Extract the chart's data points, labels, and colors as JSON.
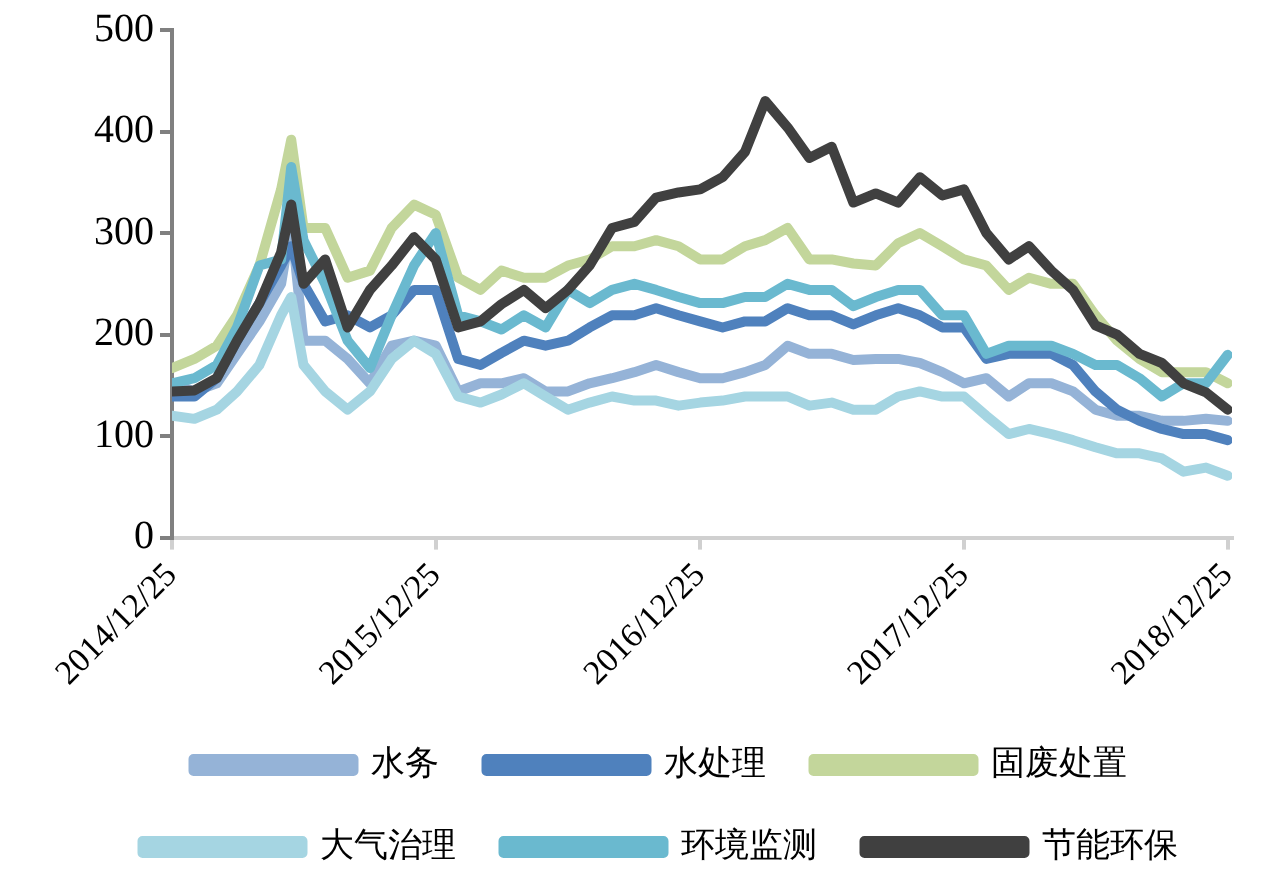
{
  "chart_data": {
    "type": "line",
    "x": [
      "2014-12-25",
      "2015-01-25",
      "2015-02-25",
      "2015-03-25",
      "2015-04-25",
      "2015-05-25",
      "2015-06-08",
      "2015-06-25",
      "2015-07-25",
      "2015-08-25",
      "2015-09-25",
      "2015-10-25",
      "2015-11-25",
      "2015-12-25",
      "2016-01-25",
      "2016-02-25",
      "2016-03-25",
      "2016-04-25",
      "2016-05-25",
      "2016-06-25",
      "2016-07-25",
      "2016-08-25",
      "2016-09-25",
      "2016-10-25",
      "2016-11-25",
      "2016-12-25",
      "2017-01-25",
      "2017-02-25",
      "2017-03-25",
      "2017-04-25",
      "2017-05-25",
      "2017-06-25",
      "2017-07-25",
      "2017-08-25",
      "2017-09-25",
      "2017-10-25",
      "2017-11-25",
      "2017-12-25",
      "2018-01-25",
      "2018-02-25",
      "2018-03-25",
      "2018-04-25",
      "2018-05-25",
      "2018-06-25",
      "2018-07-25",
      "2018-08-25",
      "2018-09-25",
      "2018-10-25",
      "2018-11-25",
      "2018-12-25"
    ],
    "series": [
      {
        "name": "水务",
        "color": "#95b3d7",
        "values": [
          152,
          144,
          152,
          181,
          213,
          250,
          310,
          194,
          194,
          176,
          152,
          189,
          194,
          189,
          144,
          152,
          152,
          157,
          144,
          144,
          152,
          157,
          163,
          170,
          163,
          157,
          157,
          163,
          170,
          189,
          181,
          181,
          175,
          176,
          176,
          172,
          163,
          152,
          157,
          139,
          152,
          152,
          144,
          126,
          120,
          120,
          115,
          115,
          117,
          115
        ]
      },
      {
        "name": "水处理",
        "color": "#4f81bd",
        "values": [
          139,
          139,
          157,
          194,
          231,
          268,
          287,
          250,
          213,
          219,
          207,
          219,
          244,
          244,
          176,
          170,
          182,
          194,
          189,
          194,
          207,
          219,
          219,
          226,
          219,
          213,
          207,
          213,
          213,
          226,
          219,
          219,
          210,
          219,
          226,
          219,
          207,
          207,
          176,
          181,
          181,
          181,
          170,
          144,
          126,
          115,
          107,
          102,
          102,
          96
        ]
      },
      {
        "name": "固废处置",
        "color": "#c3d69b",
        "values": [
          167,
          176,
          189,
          219,
          268,
          343,
          392,
          305,
          305,
          256,
          263,
          305,
          328,
          318,
          256,
          244,
          263,
          256,
          256,
          268,
          274,
          287,
          287,
          293,
          287,
          274,
          274,
          287,
          293,
          305,
          274,
          274,
          270,
          268,
          290,
          300,
          287,
          274,
          268,
          244,
          256,
          250,
          250,
          219,
          194,
          176,
          163,
          163,
          163,
          152
        ]
      },
      {
        "name": "大气治理",
        "color": "#a5d5e2",
        "values": [
          120,
          117,
          126,
          144,
          170,
          219,
          237,
          170,
          144,
          126,
          144,
          176,
          194,
          181,
          139,
          133,
          141,
          152,
          139,
          126,
          133,
          139,
          135,
          135,
          130,
          133,
          135,
          139,
          139,
          139,
          130,
          133,
          126,
          126,
          139,
          144,
          139,
          139,
          120,
          102,
          107,
          102,
          96,
          89,
          83,
          83,
          78,
          65,
          69,
          61
        ]
      },
      {
        "name": "环境监测",
        "color": "#6ab9cf",
        "values": [
          152,
          157,
          170,
          207,
          268,
          274,
          365,
          293,
          250,
          194,
          167,
          219,
          268,
          300,
          219,
          213,
          205,
          219,
          207,
          244,
          231,
          244,
          250,
          244,
          237,
          231,
          231,
          237,
          237,
          250,
          244,
          244,
          228,
          237,
          244,
          244,
          219,
          219,
          181,
          189,
          189,
          189,
          181,
          170,
          170,
          157,
          139,
          152,
          152,
          180
        ]
      },
      {
        "name": "节能环保",
        "color": "#404040",
        "values": [
          144,
          145,
          157,
          194,
          231,
          281,
          328,
          250,
          274,
          207,
          244,
          268,
          296,
          274,
          207,
          213,
          230,
          244,
          226,
          244,
          268,
          305,
          311,
          335,
          340,
          343,
          355,
          380,
          430,
          404,
          374,
          385,
          330,
          339,
          330,
          355,
          337,
          343,
          300,
          274,
          287,
          263,
          244,
          209,
          200,
          181,
          172,
          152,
          143,
          126
        ]
      }
    ],
    "xlim": [
      "2014-12-25",
      "2018-12-31"
    ],
    "xticks": [
      {
        "value": "2014-12-25",
        "label": "2014/12/25"
      },
      {
        "value": "2015-12-25",
        "label": "2015/12/25"
      },
      {
        "value": "2016-12-25",
        "label": "2016/12/25"
      },
      {
        "value": "2017-12-25",
        "label": "2017/12/25"
      },
      {
        "value": "2018-12-25",
        "label": "2018/12/25"
      }
    ],
    "ylim": [
      0,
      500
    ],
    "yticks": [
      0,
      100,
      200,
      300,
      400,
      500
    ],
    "grid": false,
    "legend": "bottom",
    "marker": "none",
    "line_style": "solid"
  }
}
